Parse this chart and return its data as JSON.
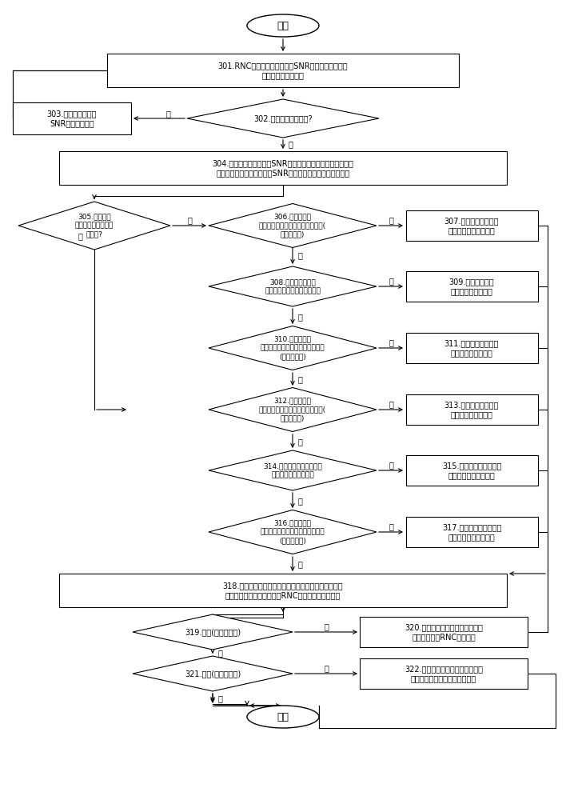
{
  "bg_color": "#ffffff",
  "box_color": "#ffffff",
  "box_edge": "#000000",
  "text_color": "#000000",
  "font_size": 7.0,
  "small_font": 6.5,
  "title_font": 9.0,
  "start_text": "开始",
  "end_text": "结束",
  "n301_text": "301.RNC接收终端测量报告的SNR值、接收基站上报\n缓存区的剩余缓存量",
  "n302_text": "302.配置时间周期超时?",
  "n303_text": "303.保留本次采集的\nSNR值和缓存余量",
  "n304_text": "304.计算此时间周期内的SNR均值、缓存余量均值，清除历史\n记录，找到对应表获取当前SNR均值对应的可发送最大数据量",
  "n305_text": "305.本次可发\n送最大数据量大于等\n于上次?",
  "n306_text": "306.本次计算的\n缓存余量大于上次保存的缓存余量(\n到一定比例)",
  "n307_text": "307.参考对应表将可发\n送最大数据量调大一级",
  "n308_text": "308.本次计算的缓存\n余量等于上次保存的缓存余量",
  "n309_text": "309.使用本次计算\n的可发送最大数据量",
  "n310_text": "310.本次计算的\n缓存余量小于上次保存的缓存余量\n(到一定比例)",
  "n311_text": "311.依然使用上次保留\n的可发送最大数据量",
  "n312_text": "312.本次计算的\n缓存余量大于上次保存的缓存余量(\n到一定比例)",
  "n313_text": "313.依然使用上次保留\n的可发送最大数据量",
  "n314_text": "314.本次计算的缓存余量等\n于上次保存的缓存余量",
  "n315_text": "315.使用本次获取的可发\n送最大数据量发送数据",
  "n316_text": "316.本次计算的\n缓存余量小于上次保存的缓存余量\n(到一定比例)",
  "n317_text": "317.可参考对应表将可发\n送最大数据量调小一级",
  "n318_text": "318.将所确定的可发送最大数据量换算成速率，与本段\n时间内计算的服务器发送给RNC的数据速率进行比对",
  "n319_text": "319.大于(到一定比例)",
  "n320_text": "320.向服务器发送控制消息，增加\n服务器发送给RNC的数据量",
  "n321_text": "321.小于(到一定比例)",
  "n322_text": "322.向服务器发送控制消息，减少\n服务器发送给本地网元的数据量",
  "yes": "是",
  "no": "否"
}
